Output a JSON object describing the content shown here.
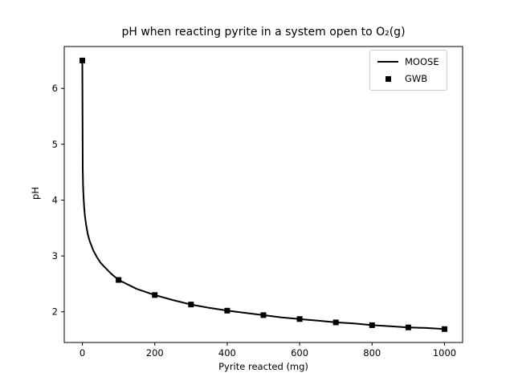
{
  "chart_data": {
    "type": "line",
    "title": "pH when reacting pyrite in a system open to O₂(g)",
    "xlabel": "Pyrite reacted (mg)",
    "ylabel": "pH",
    "xlim": [
      -50,
      1050
    ],
    "ylim": [
      1.45,
      6.75
    ],
    "xticks": [
      0,
      200,
      400,
      600,
      800,
      1000
    ],
    "yticks": [
      2,
      3,
      4,
      5,
      6
    ],
    "grid": false,
    "legend_position": "upper right",
    "line_color": "#000000",
    "marker_color": "#000000",
    "series": [
      {
        "name": "MOOSE",
        "type": "line",
        "color": "#000000",
        "x": [
          0,
          1,
          2,
          3,
          5,
          7,
          10,
          15,
          20,
          30,
          40,
          50,
          60,
          80,
          100,
          150,
          200,
          250,
          300,
          350,
          400,
          450,
          500,
          550,
          600,
          650,
          700,
          750,
          800,
          850,
          900,
          950,
          1000
        ],
        "y": [
          6.5,
          4.57,
          4.27,
          4.09,
          3.87,
          3.72,
          3.57,
          3.39,
          3.27,
          3.1,
          2.98,
          2.88,
          2.81,
          2.68,
          2.57,
          2.41,
          2.3,
          2.21,
          2.13,
          2.07,
          2.02,
          1.98,
          1.94,
          1.9,
          1.87,
          1.84,
          1.81,
          1.79,
          1.76,
          1.74,
          1.72,
          1.71,
          1.69
        ]
      },
      {
        "name": "GWB",
        "type": "scatter",
        "marker": "square",
        "color": "#000000",
        "x": [
          0,
          100,
          200,
          300,
          400,
          500,
          600,
          700,
          800,
          900,
          1000
        ],
        "y": [
          6.5,
          2.57,
          2.3,
          2.13,
          2.02,
          1.94,
          1.87,
          1.81,
          1.76,
          1.72,
          1.69
        ]
      }
    ]
  }
}
